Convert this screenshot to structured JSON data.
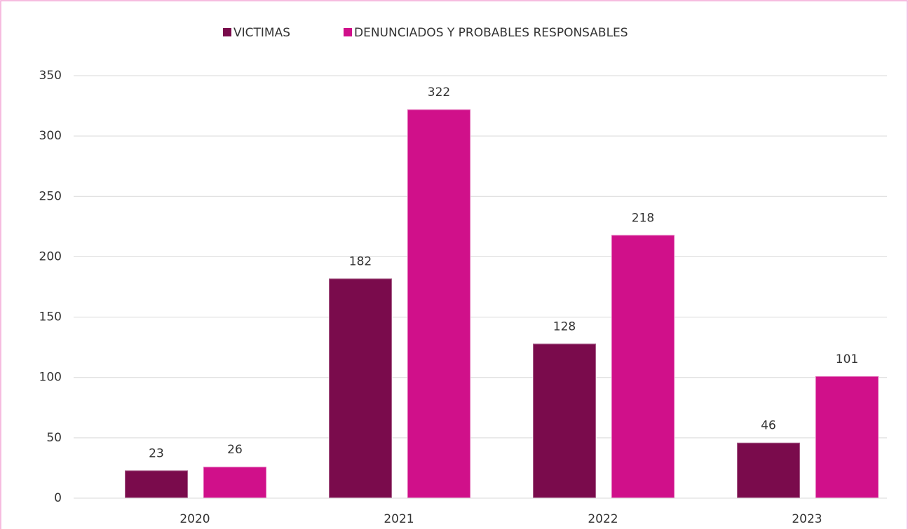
{
  "chart_data": {
    "type": "bar",
    "categories": [
      "2020",
      "2021",
      "2022",
      "2023"
    ],
    "series": [
      {
        "name": "VICTIMAS",
        "color": "#7a0b4c",
        "values": [
          23,
          182,
          128,
          46
        ]
      },
      {
        "name": "DENUNCIADOS Y PROBABLES RESPONSABLES",
        "color": "#d0108a",
        "values": [
          26,
          322,
          218,
          101
        ]
      }
    ],
    "ylim": [
      0,
      350
    ],
    "yticks": [
      0,
      50,
      100,
      150,
      200,
      250,
      300,
      350
    ],
    "grid": true,
    "legend": "top"
  }
}
